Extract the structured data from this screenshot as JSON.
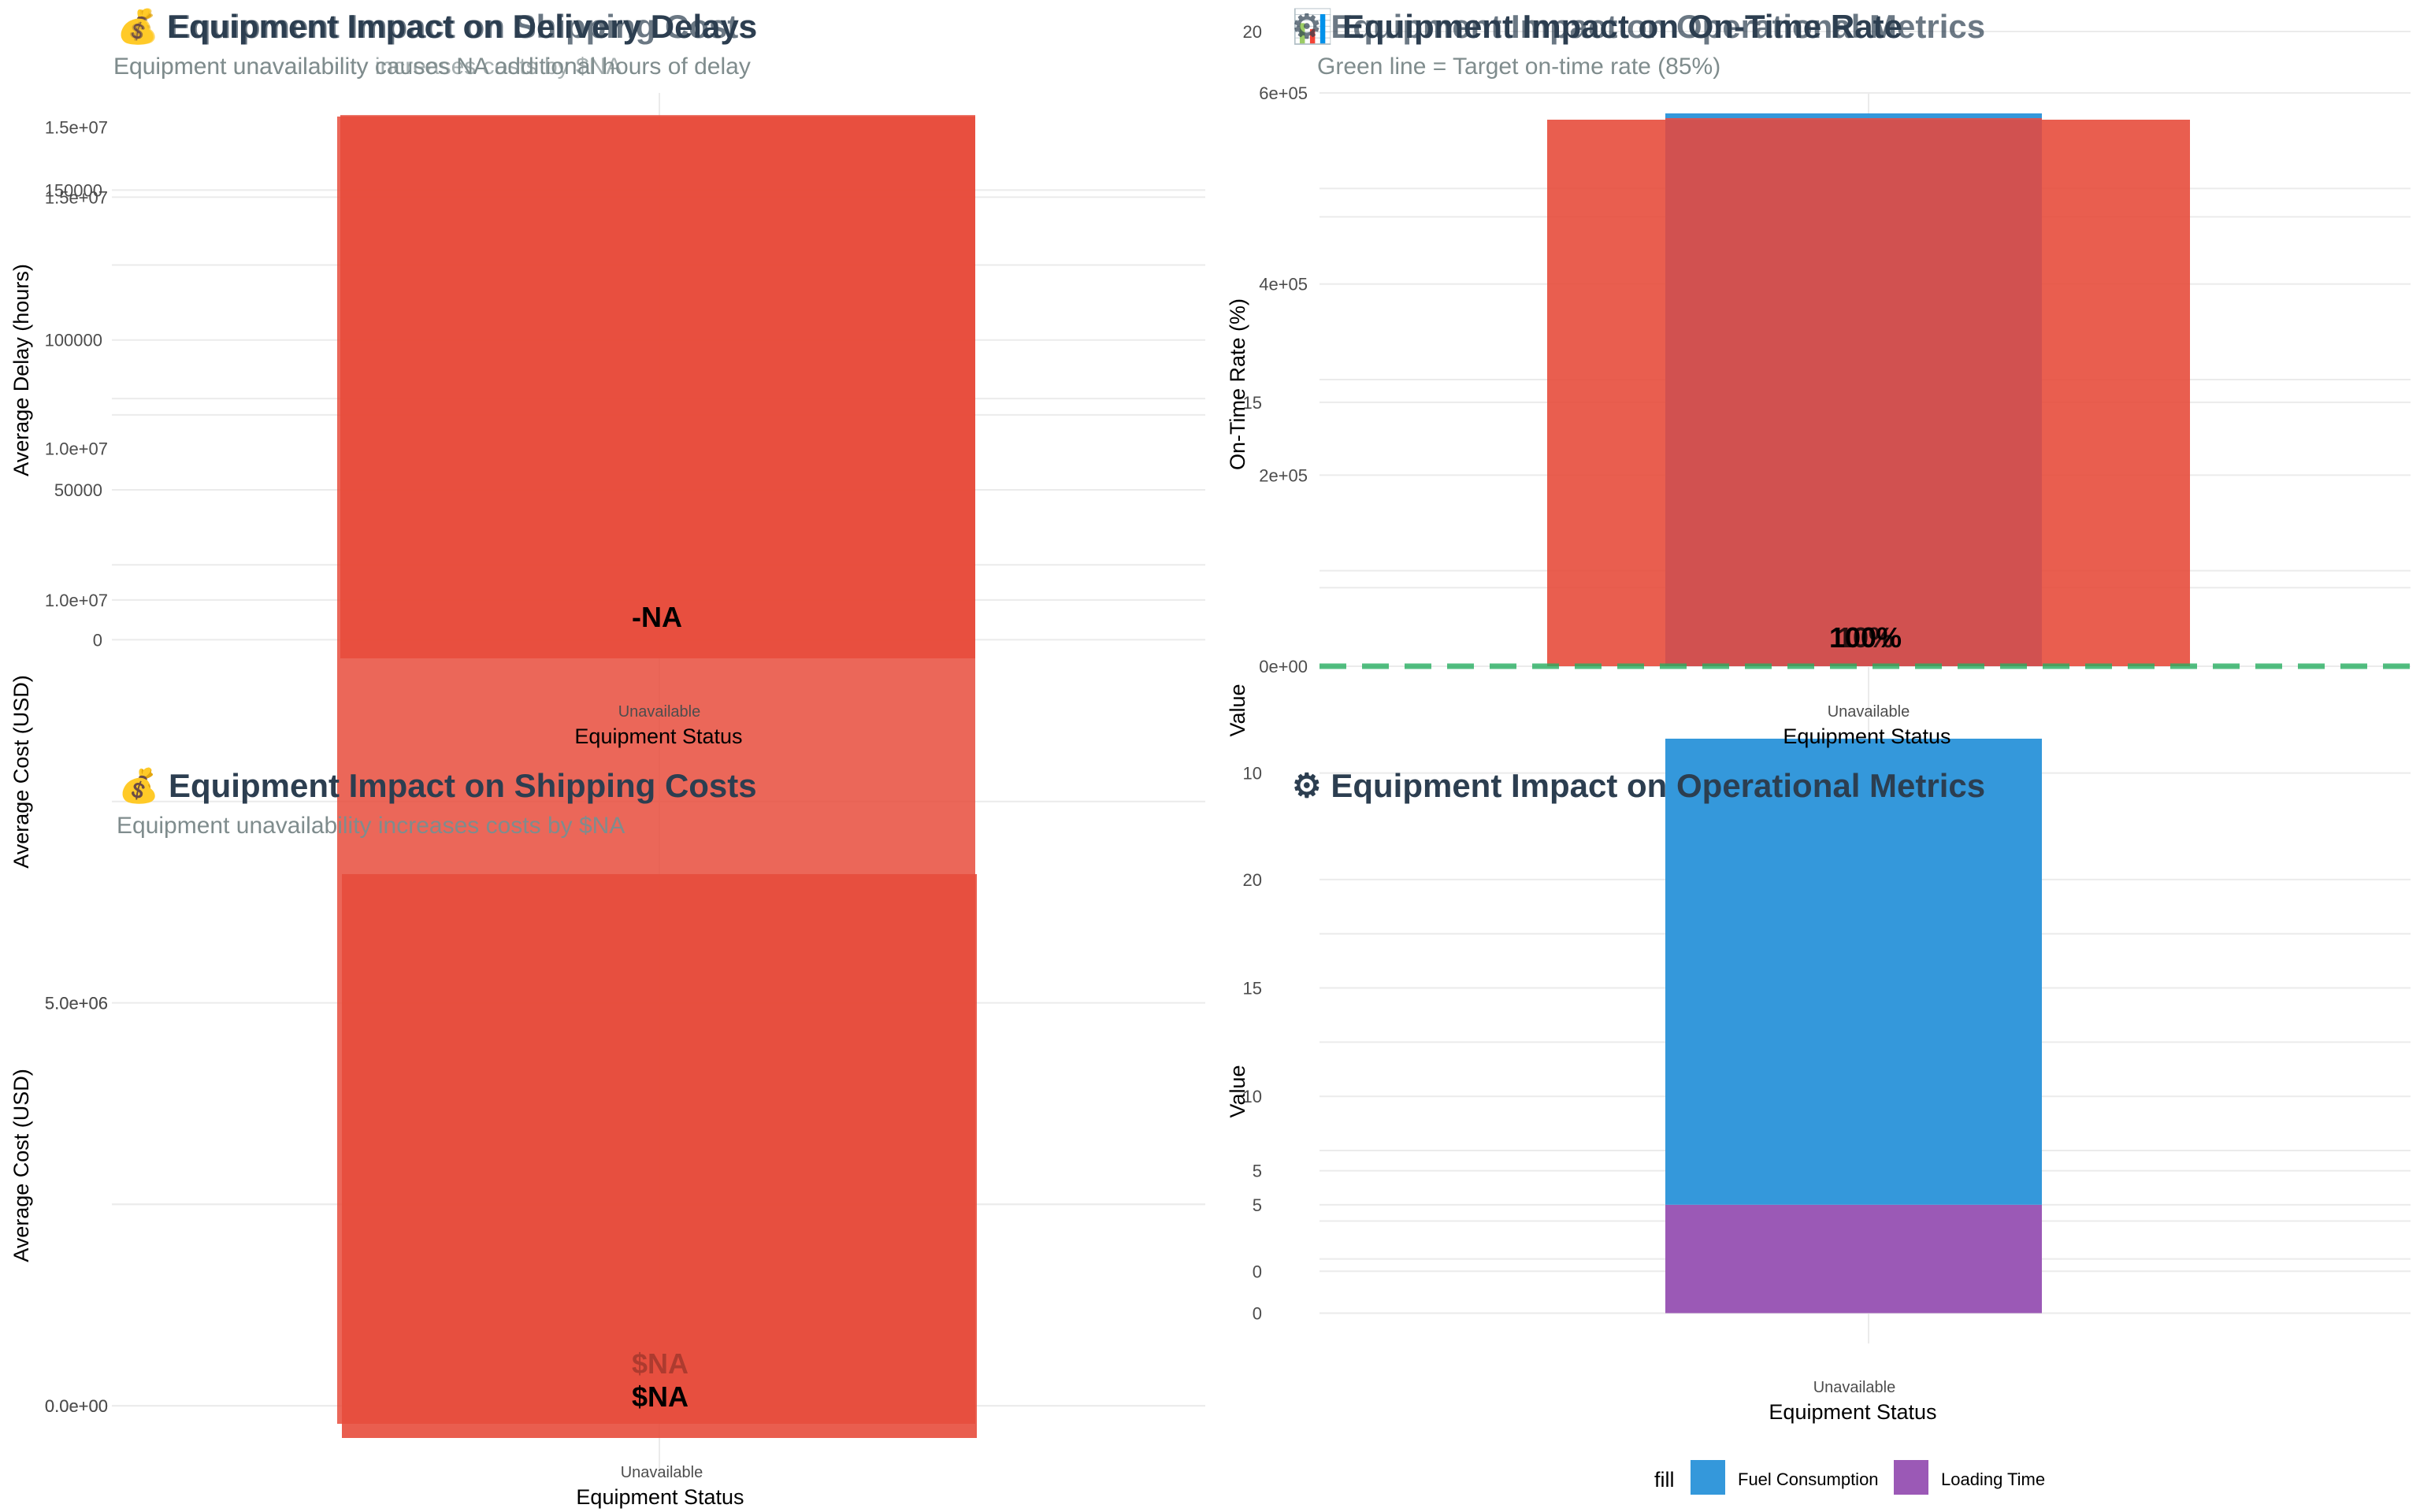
{
  "chart_data": [
    {
      "id": "delay_old",
      "type": "bar",
      "title": "💰 Equipment Impact on Delivery Delays",
      "subtitle": "Equipment unavailability causes NA additional hours of delay",
      "xlabel": "Equipment Status",
      "ylabel": "Average Delay (hours)",
      "categories": [
        "Unavailable"
      ],
      "values": [
        175000
      ],
      "ylim": [
        -6200,
        174000
      ],
      "yticks": [
        0,
        50000,
        100000,
        150000
      ],
      "ytick_labels": [
        "0",
        "50000",
        "100000",
        "150000"
      ],
      "bar_color": "#e74c3c",
      "data_label": "-NA"
    },
    {
      "id": "cost_overlay",
      "type": "bar",
      "title": "💰 Equipment Impact on Shipping Costs",
      "subtitle": "Equipment unavailability increases costs by $NA",
      "xlabel": "Equipment Status",
      "ylabel": "Average Cost (USD)",
      "categories": [
        "Unavailable"
      ],
      "values": [
        15800000
      ],
      "ylim": [
        0,
        16000000
      ],
      "yticks": [
        10000000,
        15000000
      ],
      "ytick_labels": [
        "1.0e+07",
        "1.5e+07"
      ],
      "bar_color": "#e74c3c",
      "data_label": ""
    },
    {
      "id": "cost_main",
      "type": "bar",
      "title": "💰 Equipment Impact on Shipping Costs",
      "subtitle": "Equipment unavailability increases costs by $NA",
      "xlabel": "Equipment Status",
      "ylabel": "Average Cost (USD)",
      "categories": [
        "Unavailable"
      ],
      "values": [
        16000000
      ],
      "ylim": [
        -400000,
        16000000
      ],
      "yticks": [
        0,
        5000000,
        10000000,
        15000000
      ],
      "ytick_labels": [
        "0.0e+00",
        "5.0e+06",
        "1.0e+07",
        "1.5e+07"
      ],
      "bar_color": "#e74c3c",
      "data_label": "$NA",
      "data_label_faint": "$NA"
    },
    {
      "id": "cost_ghost",
      "type": "bar",
      "title": "",
      "subtitle": "",
      "xlabel": "",
      "ylabel": "",
      "categories": [],
      "values": [],
      "ylim": [
        -400000,
        16000000
      ],
      "yticks": [
        0,
        5000000
      ],
      "ytick_labels": [
        "0.0e+00",
        "5.0e+06"
      ],
      "bar_color": "#e74c3c",
      "data_label": ""
    },
    {
      "id": "ontime",
      "type": "bar",
      "title": "📊 Equipment Impact on On-Time Rate",
      "subtitle": "Green line = Target on-time rate (85%)",
      "xlabel": "Equipment Status",
      "ylabel": "On-Time Rate (%)",
      "categories": [
        "Unavailable"
      ],
      "values": [
        572000
      ],
      "ylim": [
        0,
        600000
      ],
      "yticks": [
        0,
        200000,
        400000,
        600000
      ],
      "ytick_labels": [
        "0e+00",
        "2e+05",
        "4e+05",
        "6e+05"
      ],
      "target_line": 0,
      "target_line_color": "#27ae60",
      "bar_color": "#e74c3c",
      "data_label": "100%",
      "data_label_overlay": "10%"
    },
    {
      "id": "ops_old",
      "type": "bar",
      "title": "⚙ Equipment Impact on Operational Metrics",
      "subtitle": "",
      "xlabel": "",
      "ylabel": "Value",
      "categories": [
        "Unavailable"
      ],
      "series": [
        {
          "name": "Fuel Consumption",
          "values": [
            20.1
          ],
          "color": "#3498db"
        }
      ],
      "ylim": [
        8,
        20
      ],
      "yticks": [
        10,
        15,
        20
      ],
      "ytick_labels": [
        "10",
        "15",
        "20"
      ],
      "data_label": ""
    },
    {
      "id": "ops_main",
      "type": "stacked-bar",
      "title": "⚙ Equipment Impact on Operational Metrics",
      "subtitle": "",
      "xlabel": "Equipment Status",
      "ylabel": "Value",
      "categories": [
        "Unavailable"
      ],
      "series": [
        {
          "name": "Loading Time",
          "values": [
            5
          ],
          "color": "#9b59b6"
        },
        {
          "name": "Fuel Consumption",
          "values": [
            21.5
          ],
          "color": "#3498db"
        }
      ],
      "ylim": [
        -1.4,
        26.5
      ],
      "yticks": [
        0,
        5,
        10,
        15,
        20
      ],
      "ytick_labels": [
        "0",
        "5",
        "10",
        "15",
        "20"
      ],
      "legend_title": "fill",
      "legend_position": "bottom"
    },
    {
      "id": "ops_ghost",
      "type": "stacked-bar",
      "title": "",
      "subtitle": "",
      "xlabel": "",
      "ylabel": "",
      "categories": [],
      "series": [],
      "ylim": [
        -1.4,
        26.5
      ],
      "yticks": [
        0,
        5
      ],
      "ytick_labels": [
        "0",
        "5"
      ]
    }
  ]
}
